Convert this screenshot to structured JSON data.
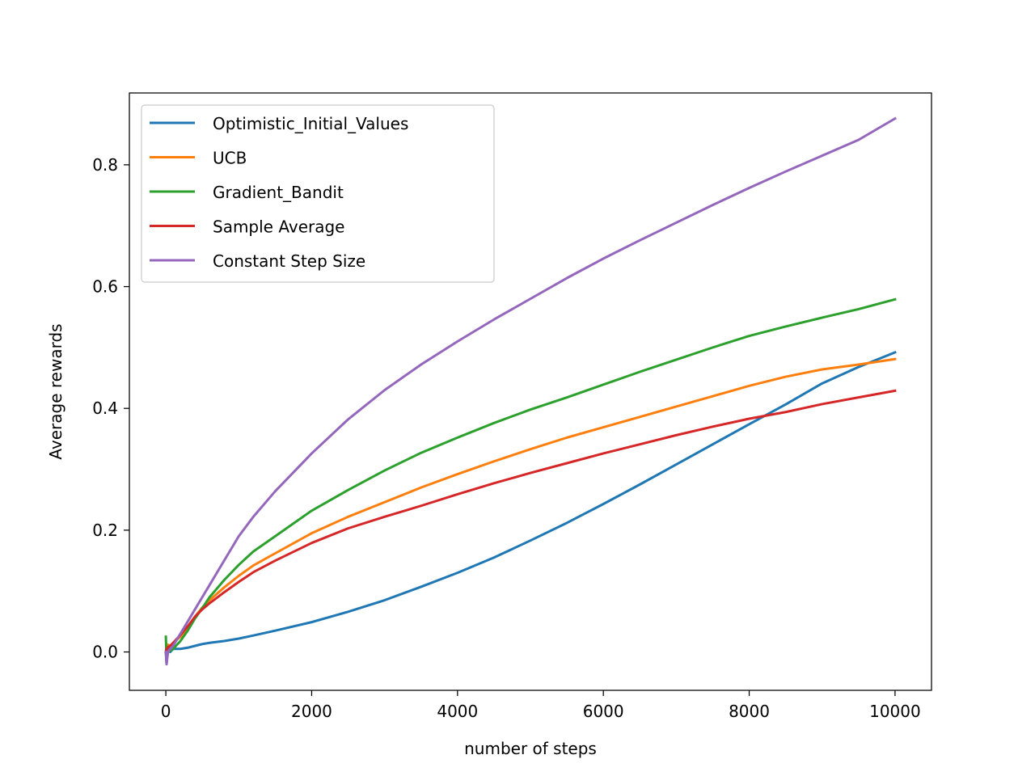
{
  "chart_data": {
    "type": "line",
    "xlabel": "number of steps",
    "ylabel": "Average rewards",
    "xlim": [
      -500,
      10500
    ],
    "ylim": [
      -0.063,
      0.918
    ],
    "xticks": [
      0,
      2000,
      4000,
      6000,
      8000,
      10000
    ],
    "xtick_labels": [
      "0",
      "2000",
      "4000",
      "6000",
      "8000",
      "10000"
    ],
    "yticks": [
      0.0,
      0.2,
      0.4,
      0.6,
      0.8
    ],
    "ytick_labels": [
      "0.0",
      "0.2",
      "0.4",
      "0.6",
      "0.8"
    ],
    "grid": false,
    "legend_position": "top-left",
    "series": [
      {
        "name": "Optimistic_Initial_Values",
        "color": "#1f77b4",
        "x": [
          0,
          10,
          30,
          60,
          100,
          200,
          300,
          400,
          500,
          600,
          800,
          1000,
          1200,
          1500,
          2000,
          2500,
          3000,
          3500,
          4000,
          4500,
          5000,
          5500,
          6000,
          6500,
          7000,
          7500,
          8000,
          8500,
          9000,
          9500,
          10000
        ],
        "y": [
          0.0,
          -0.02,
          0.01,
          0.0,
          0.005,
          0.005,
          0.007,
          0.01,
          0.013,
          0.015,
          0.018,
          0.022,
          0.027,
          0.035,
          0.049,
          0.066,
          0.085,
          0.107,
          0.13,
          0.155,
          0.183,
          0.212,
          0.243,
          0.275,
          0.308,
          0.341,
          0.374,
          0.4065,
          0.441,
          0.468,
          0.492
        ]
      },
      {
        "name": "UCB",
        "color": "#ff7f0e",
        "x": [
          0,
          10,
          30,
          60,
          100,
          200,
          300,
          400,
          500,
          600,
          800,
          1000,
          1200,
          1500,
          2000,
          2500,
          3000,
          3500,
          4000,
          4500,
          5000,
          5500,
          6000,
          6500,
          7000,
          7500,
          8000,
          8500,
          9000,
          9500,
          10000
        ],
        "y": [
          0.0,
          0.01,
          0.012,
          0.01,
          0.015,
          0.025,
          0.04,
          0.058,
          0.073,
          0.085,
          0.106,
          0.125,
          0.142,
          0.162,
          0.195,
          0.222,
          0.246,
          0.27,
          0.292,
          0.313,
          0.333,
          0.352,
          0.369,
          0.386,
          0.403,
          0.42,
          0.437,
          0.452,
          0.464,
          0.472,
          0.481
        ]
      },
      {
        "name": "Gradient_Bandit",
        "color": "#2ca02c",
        "x": [
          0,
          10,
          30,
          60,
          100,
          200,
          300,
          400,
          500,
          600,
          800,
          1000,
          1200,
          1500,
          2000,
          2500,
          3000,
          3500,
          4000,
          4500,
          5000,
          5500,
          6000,
          6500,
          7000,
          7500,
          8000,
          8500,
          9000,
          9500,
          10000
        ],
        "y": [
          0.025,
          -0.01,
          0.0,
          0.002,
          0.005,
          0.018,
          0.035,
          0.055,
          0.072,
          0.09,
          0.118,
          0.143,
          0.165,
          0.19,
          0.232,
          0.266,
          0.298,
          0.327,
          0.352,
          0.376,
          0.398,
          0.418,
          0.439,
          0.46,
          0.48,
          0.5,
          0.519,
          0.5345,
          0.549,
          0.563,
          0.579
        ]
      },
      {
        "name": "Sample Average",
        "color": "#d62728",
        "x": [
          0,
          10,
          30,
          60,
          100,
          200,
          300,
          400,
          500,
          600,
          800,
          1000,
          1200,
          1500,
          2000,
          2500,
          3000,
          3500,
          4000,
          4500,
          5000,
          5500,
          6000,
          6500,
          7000,
          7500,
          8000,
          8500,
          9000,
          9500,
          10000
        ],
        "y": [
          0.0,
          0.005,
          0.008,
          0.01,
          0.015,
          0.028,
          0.042,
          0.058,
          0.07,
          0.08,
          0.098,
          0.115,
          0.131,
          0.15,
          0.179,
          0.203,
          0.222,
          0.24,
          0.259,
          0.277,
          0.294,
          0.31,
          0.326,
          0.341,
          0.356,
          0.37,
          0.383,
          0.394,
          0.407,
          0.418,
          0.429
        ]
      },
      {
        "name": "Constant Step Size",
        "color": "#9467bd",
        "x": [
          0,
          10,
          30,
          60,
          100,
          200,
          300,
          400,
          500,
          600,
          800,
          1000,
          1200,
          1500,
          2000,
          2500,
          3000,
          3500,
          4000,
          4500,
          5000,
          5500,
          6000,
          6500,
          7000,
          7500,
          8000,
          8500,
          9000,
          9500,
          10000
        ],
        "y": [
          0.0,
          -0.02,
          0.0,
          0.005,
          0.01,
          0.03,
          0.05,
          0.07,
          0.09,
          0.11,
          0.15,
          0.19,
          0.222,
          0.264,
          0.326,
          0.382,
          0.43,
          0.472,
          0.51,
          0.546,
          0.58,
          0.614,
          0.646,
          0.676,
          0.705,
          0.734,
          0.762,
          0.789,
          0.815,
          0.841,
          0.876
        ]
      }
    ]
  }
}
